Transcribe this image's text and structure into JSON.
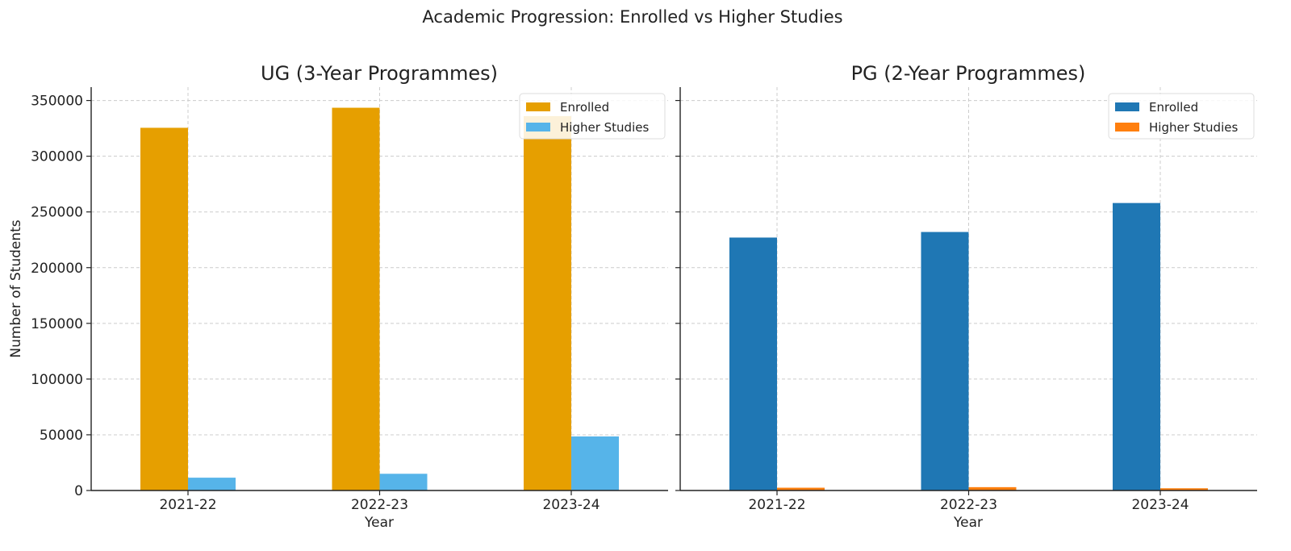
{
  "figure": {
    "suptitle": "Academic Progression: Enrolled vs Higher Studies"
  },
  "chart_data": [
    {
      "type": "bar",
      "title": "UG (3-Year Programmes)",
      "xlabel": "Year",
      "ylabel": "Number of Students",
      "categories": [
        "2021-22",
        "2022-23",
        "2023-24"
      ],
      "ylim": [
        0,
        362000
      ],
      "yticks": [
        0,
        50000,
        100000,
        150000,
        200000,
        250000,
        300000,
        350000
      ],
      "grid": true,
      "legend_position": "top-right",
      "series": [
        {
          "name": "Enrolled",
          "color": "#E69F00",
          "values": [
            325500,
            343500,
            336000
          ]
        },
        {
          "name": "Higher Studies",
          "color": "#56B4E9",
          "values": [
            11500,
            15000,
            48500
          ]
        }
      ]
    },
    {
      "type": "bar",
      "title": "PG (2-Year Programmes)",
      "xlabel": "Year",
      "ylabel": "",
      "categories": [
        "2021-22",
        "2022-23",
        "2023-24"
      ],
      "ylim": [
        0,
        362000
      ],
      "yticks": [
        0,
        50000,
        100000,
        150000,
        200000,
        250000,
        300000,
        350000
      ],
      "grid": true,
      "legend_position": "top-right",
      "series": [
        {
          "name": "Enrolled",
          "color": "#1F77B4",
          "values": [
            227000,
            232000,
            258000
          ]
        },
        {
          "name": "Higher Studies",
          "color": "#FF7F0E",
          "values": [
            2500,
            3000,
            2000
          ]
        }
      ]
    }
  ]
}
